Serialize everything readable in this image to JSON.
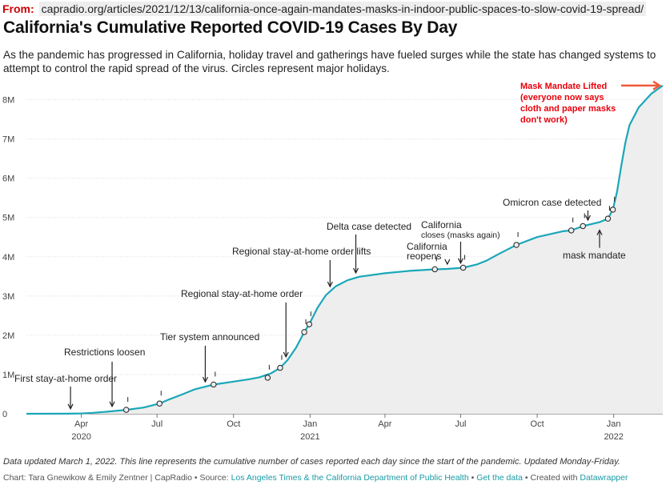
{
  "source": {
    "label": "From:",
    "url": "capradio.org/articles/2021/12/13/california-once-again-mandates-masks-in-indoor-public-spaces-to-slow-covid-19-spread/"
  },
  "header": {
    "title": "California's Cumulative Reported COVID-19 Cases By Day",
    "subtitle": "As the pandemic has progressed in California, holiday travel and gatherings have fueled surges while the state has changed systems to attempt to control the rapid spread of the virus. Circles represent major holidays."
  },
  "chart_data": {
    "type": "area",
    "xlabel": "",
    "ylabel": "",
    "ylim": [
      0,
      8500000
    ],
    "grid": true,
    "yticks": [
      {
        "value": 0,
        "label": "0"
      },
      {
        "value": 1000000,
        "label": "1M"
      },
      {
        "value": 2000000,
        "label": "2M"
      },
      {
        "value": 3000000,
        "label": "3M"
      },
      {
        "value": 4000000,
        "label": "4M"
      },
      {
        "value": 5000000,
        "label": "5M"
      },
      {
        "value": 6000000,
        "label": "6M"
      },
      {
        "value": 7000000,
        "label": "7M"
      },
      {
        "value": 8000000,
        "label": "8M"
      }
    ],
    "xticks": [
      {
        "date": "2020-04-01",
        "label": "Apr",
        "year": "2020"
      },
      {
        "date": "2020-07-01",
        "label": "Jul",
        "year": ""
      },
      {
        "date": "2020-10-01",
        "label": "Oct",
        "year": ""
      },
      {
        "date": "2021-01-01",
        "label": "Jan",
        "year": "2021"
      },
      {
        "date": "2021-04-01",
        "label": "Apr",
        "year": ""
      },
      {
        "date": "2021-07-01",
        "label": "Jul",
        "year": ""
      },
      {
        "date": "2021-10-01",
        "label": "Oct",
        "year": ""
      },
      {
        "date": "2022-01-01",
        "label": "Jan",
        "year": "2022"
      }
    ],
    "series": [
      {
        "color": "#1aa7b8",
        "points": [
          [
            "2020-01-26",
            0
          ],
          [
            "2020-03-15",
            2000
          ],
          [
            "2020-04-01",
            9000
          ],
          [
            "2020-04-15",
            25000
          ],
          [
            "2020-05-01",
            50000
          ],
          [
            "2020-05-25",
            100000
          ],
          [
            "2020-06-15",
            160000
          ],
          [
            "2020-07-04",
            260000
          ],
          [
            "2020-07-15",
            360000
          ],
          [
            "2020-08-01",
            500000
          ],
          [
            "2020-08-15",
            620000
          ],
          [
            "2020-09-07",
            745000
          ],
          [
            "2020-10-01",
            820000
          ],
          [
            "2020-10-20",
            880000
          ],
          [
            "2020-11-01",
            930000
          ],
          [
            "2020-11-15",
            1030000
          ],
          [
            "2020-11-26",
            1170000
          ],
          [
            "2020-12-05",
            1370000
          ],
          [
            "2020-12-15",
            1680000
          ],
          [
            "2020-12-25",
            2080000
          ],
          [
            "2020-12-31",
            2280000
          ],
          [
            "2021-01-10",
            2700000
          ],
          [
            "2021-01-20",
            3020000
          ],
          [
            "2021-02-01",
            3250000
          ],
          [
            "2021-02-15",
            3400000
          ],
          [
            "2021-03-01",
            3490000
          ],
          [
            "2021-04-01",
            3580000
          ],
          [
            "2021-05-01",
            3640000
          ],
          [
            "2021-05-31",
            3680000
          ],
          [
            "2021-06-15",
            3690000
          ],
          [
            "2021-07-04",
            3720000
          ],
          [
            "2021-07-20",
            3800000
          ],
          [
            "2021-08-01",
            3900000
          ],
          [
            "2021-08-15",
            4060000
          ],
          [
            "2021-09-06",
            4300000
          ],
          [
            "2021-10-01",
            4500000
          ],
          [
            "2021-11-01",
            4650000
          ],
          [
            "2021-11-11",
            4670000
          ],
          [
            "2021-11-25",
            4780000
          ],
          [
            "2021-12-15",
            4880000
          ],
          [
            "2021-12-25",
            4970000
          ],
          [
            "2021-12-31",
            5200000
          ],
          [
            "2022-01-05",
            5650000
          ],
          [
            "2022-01-10",
            6300000
          ],
          [
            "2022-01-15",
            6900000
          ],
          [
            "2022-01-20",
            7350000
          ],
          [
            "2022-01-31",
            7800000
          ],
          [
            "2022-02-15",
            8150000
          ],
          [
            "2022-03-01",
            8360000
          ]
        ]
      }
    ],
    "holidays": [
      [
        "2020-05-25",
        100000
      ],
      [
        "2020-07-04",
        260000
      ],
      [
        "2020-09-07",
        745000
      ],
      [
        "2020-11-11",
        920000
      ],
      [
        "2020-11-26",
        1170000
      ],
      [
        "2020-12-25",
        2080000
      ],
      [
        "2020-12-31",
        2280000
      ],
      [
        "2021-05-31",
        3680000
      ],
      [
        "2021-07-04",
        3720000
      ],
      [
        "2021-09-06",
        4300000
      ],
      [
        "2021-11-11",
        4670000
      ],
      [
        "2021-11-25",
        4780000
      ],
      [
        "2021-12-25",
        4970000
      ],
      [
        "2021-12-31",
        5200000
      ]
    ],
    "annotations": [
      {
        "id": "first-stay-at-home",
        "lines": [
          "First stay-at-home order"
        ],
        "date": "2020-03-19",
        "arrow": "down",
        "color": "#222"
      },
      {
        "id": "restrictions-loosen",
        "lines": [
          "Restrictions loosen"
        ],
        "date": "2020-05-08",
        "arrow": "down",
        "color": "#222"
      },
      {
        "id": "tier-system",
        "lines": [
          "Tier system announced"
        ],
        "date": "2020-08-28",
        "arrow": "down",
        "color": "#222"
      },
      {
        "id": "regional-order",
        "lines": [
          "Regional stay-at-home order"
        ],
        "date": "2020-12-03",
        "arrow": "down",
        "color": "#222"
      },
      {
        "id": "regional-lifts",
        "lines": [
          "Regional stay-at-home order lifts"
        ],
        "date": "2021-01-25",
        "arrow": "down",
        "color": "#222"
      },
      {
        "id": "delta-detected",
        "lines": [
          "Delta case detected"
        ],
        "date": "2021-02-25",
        "arrow": "down",
        "color": "#222"
      },
      {
        "id": "california-reopens",
        "lines": [
          "California",
          "reopens"
        ],
        "date": "2021-06-15",
        "arrow": "down",
        "color": "#222"
      },
      {
        "id": "california-closes",
        "lines": [
          "California",
          "closes (masks again)"
        ],
        "date": "2021-07-01",
        "arrow": "down",
        "color": "#222"
      },
      {
        "id": "omicron-detected",
        "lines": [
          "Omicron case detected"
        ],
        "date": "2021-12-01",
        "arrow": "down",
        "color": "#222"
      },
      {
        "id": "mask-mandate",
        "lines": [
          "mask mandate"
        ],
        "date": "2021-12-15",
        "arrow": "up",
        "color": "#222"
      },
      {
        "id": "mask-lifted",
        "lines": [
          "Mask Mandate Lifted",
          "(everyone now says",
          "cloth and paper masks",
          "don't work)"
        ],
        "date": "2022-02-15",
        "arrow": "right",
        "color": "#e8000b"
      }
    ]
  },
  "footer": {
    "notes": "Data updated March 1, 2022. This line represents the cumulative number of cases reported each day since the start of the pandemic. Updated Monday-Friday.",
    "chart_by": "Chart: Tara Gnewikow & Emily Zentner | CapRadio",
    "sep1": " • Source: ",
    "source_link": "Los Angeles Times & the California Department of Public Health",
    "sep2": " • ",
    "get_data": "Get the data",
    "sep3": " • Created with ",
    "created_with": "Datawrapper"
  }
}
